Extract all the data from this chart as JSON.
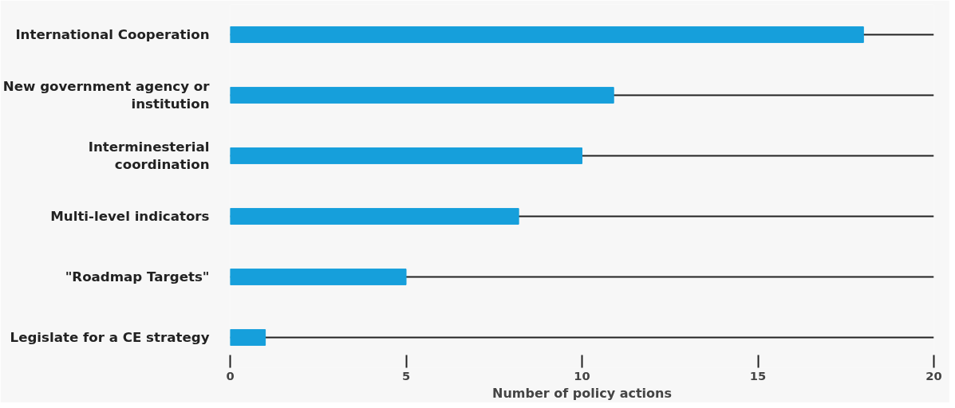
{
  "chart_data": {
    "type": "bar",
    "orientation": "horizontal",
    "xlabel": "Number of policy actions",
    "categories": [
      "International Cooperation",
      "New government agency or institution",
      "Interminesterial coordination",
      "Multi-level indicators",
      "\"Roadmap Targets\"",
      "Legislate for a CE strategy"
    ],
    "values": [
      18,
      10.9,
      10,
      8.2,
      5,
      1
    ],
    "color": "#169fdb",
    "xlim": [
      0,
      20
    ],
    "xticks": [
      0,
      5,
      10,
      15,
      20
    ],
    "grid": "y"
  }
}
